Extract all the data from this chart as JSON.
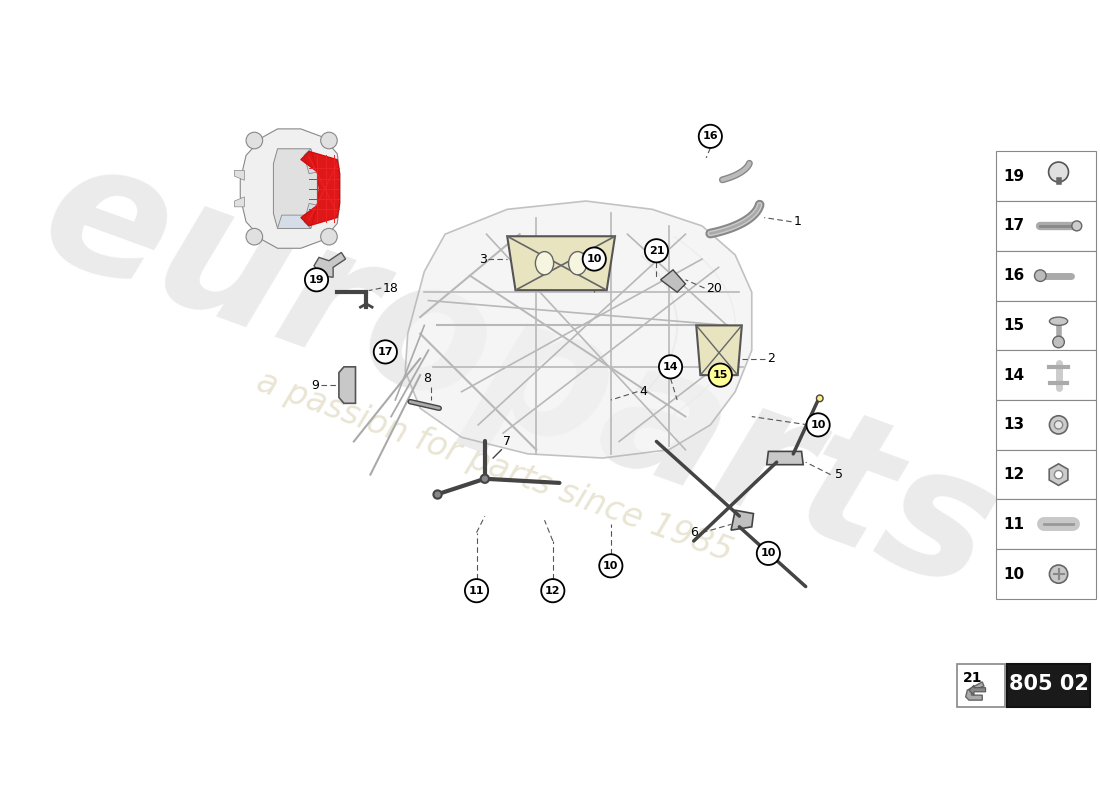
{
  "bg_color": "#ffffff",
  "part_number": "805 02",
  "watermark_text": "europarts",
  "watermark_subtext": "a passion for parts since 1985",
  "label_circles": {
    "normal_color": "#ffffff",
    "normal_border": "#000000",
    "highlighted": [
      15
    ]
  },
  "sidebar_items": [
    {
      "num": 19,
      "type": "bolt_head"
    },
    {
      "num": 17,
      "type": "long_bolt"
    },
    {
      "num": 16,
      "type": "pin_bolt"
    },
    {
      "num": 15,
      "type": "flange_bolt"
    },
    {
      "num": 14,
      "type": "anchor"
    },
    {
      "num": 13,
      "type": "small_bolt"
    },
    {
      "num": 12,
      "type": "nut"
    },
    {
      "num": 11,
      "type": "sleeve"
    },
    {
      "num": 10,
      "type": "bolt"
    }
  ],
  "frame_color": "#aaaaaa",
  "dark_line": "#444444",
  "label_r": 14
}
